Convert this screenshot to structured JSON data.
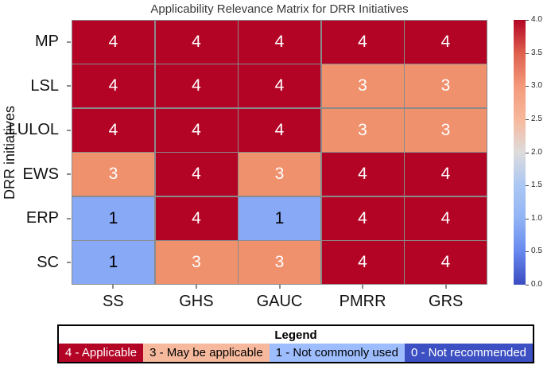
{
  "title": "Applicability Relevance Matrix for DRR Initiatives",
  "ylabel": "DRR initiatives",
  "chart_data": {
    "type": "heatmap",
    "title": "Applicability Relevance Matrix for DRR Initiatives",
    "ylabel": "DRR initiatives",
    "columns": [
      "SS",
      "GHS",
      "GAUC",
      "PMRR",
      "GRS"
    ],
    "rows": [
      "MP",
      "LSL",
      "LULOL",
      "EWS",
      "ERP",
      "SC"
    ],
    "values": [
      [
        4,
        4,
        4,
        4,
        4
      ],
      [
        4,
        4,
        4,
        3,
        3
      ],
      [
        4,
        4,
        4,
        3,
        3
      ],
      [
        3,
        4,
        3,
        4,
        4
      ],
      [
        1,
        4,
        1,
        4,
        4
      ],
      [
        1,
        3,
        3,
        4,
        4
      ]
    ],
    "vmin": 0,
    "vmax": 4,
    "colormap": "coolwarm",
    "colorbar_ticks": [
      "4.0",
      "3.5",
      "3.0",
      "2.5",
      "2.0",
      "1.5",
      "1.0",
      "0.5",
      "0.0"
    ],
    "grid": true,
    "legend_position": "bottom"
  },
  "value_styles": {
    "4": {
      "bg": "#b40426",
      "text": "#ffffff"
    },
    "3": {
      "bg": "#f0916e",
      "text": "#ffffff"
    },
    "1": {
      "bg": "#88a9f6",
      "text": "#000000"
    }
  },
  "legend": {
    "title": "Legend",
    "entries": [
      {
        "label": "4 - Applicable",
        "bg": "#b40426",
        "text": "#ffffff"
      },
      {
        "label": "3 - May be applicable",
        "bg": "#f6b99d",
        "text": "#000000"
      },
      {
        "label": "1 - Not commonly used",
        "bg": "#9dbdfe",
        "text": "#000000"
      },
      {
        "label": "0 - Not recommended",
        "bg": "#3d50c3",
        "text": "#ffffff"
      }
    ]
  }
}
